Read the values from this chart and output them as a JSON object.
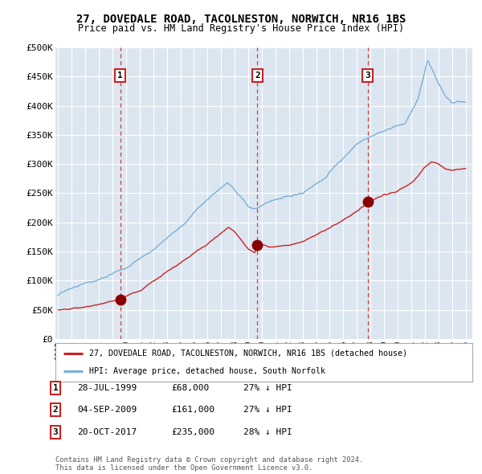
{
  "title": "27, DOVEDALE ROAD, TACOLNESTON, NORWICH, NR16 1BS",
  "subtitle": "Price paid vs. HM Land Registry's House Price Index (HPI)",
  "bg_color": "#dce6f1",
  "grid_color": "#ffffff",
  "ylim": [
    0,
    500000
  ],
  "yticks": [
    0,
    50000,
    100000,
    150000,
    200000,
    250000,
    300000,
    350000,
    400000,
    450000,
    500000
  ],
  "xlim_start": 1994.8,
  "xlim_end": 2025.5,
  "hpi_color": "#7ab0d8",
  "price_color": "#cc2222",
  "marker_color": "#8b0000",
  "vline_color": "#cc2222",
  "purchases": [
    {
      "date_year": 1999.57,
      "price": 68000,
      "label": "1"
    },
    {
      "date_year": 2009.67,
      "price": 161000,
      "label": "2"
    },
    {
      "date_year": 2017.8,
      "price": 235000,
      "label": "3"
    }
  ],
  "legend_house_label": "27, DOVEDALE ROAD, TACOLNESTON, NORWICH, NR16 1BS (detached house)",
  "legend_hpi_label": "HPI: Average price, detached house, South Norfolk",
  "table_rows": [
    {
      "num": "1",
      "date": "28-JUL-1999",
      "price": "£68,000",
      "hpi": "27% ↓ HPI"
    },
    {
      "num": "2",
      "date": "04-SEP-2009",
      "price": "£161,000",
      "hpi": "27% ↓ HPI"
    },
    {
      "num": "3",
      "date": "20-OCT-2017",
      "price": "£235,000",
      "hpi": "28% ↓ HPI"
    }
  ],
  "footer": "Contains HM Land Registry data © Crown copyright and database right 2024.\nThis data is licensed under the Open Government Licence v3.0."
}
